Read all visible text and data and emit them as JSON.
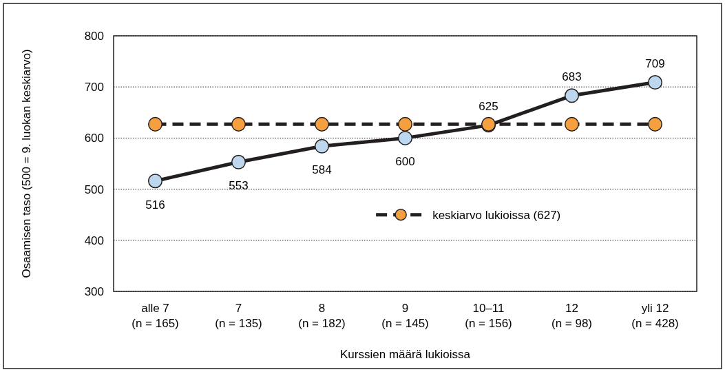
{
  "chart_data": {
    "type": "line",
    "xlabel": "Kurssien määrä lukioissa",
    "ylabel": "Osaamisen taso (500 = 9. luokan keskiarvo)",
    "categories": [
      "alle 7\n(n = 165)",
      "7\n(n = 135)",
      "8\n(n = 182)",
      "9\n(n = 145)",
      "10–11\n(n = 156)",
      "12\n(n = 98)",
      "yli 12\n(n = 428)"
    ],
    "series": [
      {
        "color": "#bdd7ee",
        "values": [
          516,
          553,
          584,
          600,
          625,
          683,
          709
        ],
        "line_style": "solid",
        "data_labels": true
      },
      {
        "name": "keskiarvo lukioissa (627)",
        "color": "#f4a040",
        "values": [
          627,
          627,
          627,
          627,
          627,
          627,
          627
        ],
        "line_style": "dashed"
      }
    ],
    "ylim": [
      300,
      800
    ],
    "yticks": [
      300,
      400,
      500,
      600,
      700,
      800
    ],
    "grid": "y",
    "marker": "circle",
    "legend": "right"
  }
}
